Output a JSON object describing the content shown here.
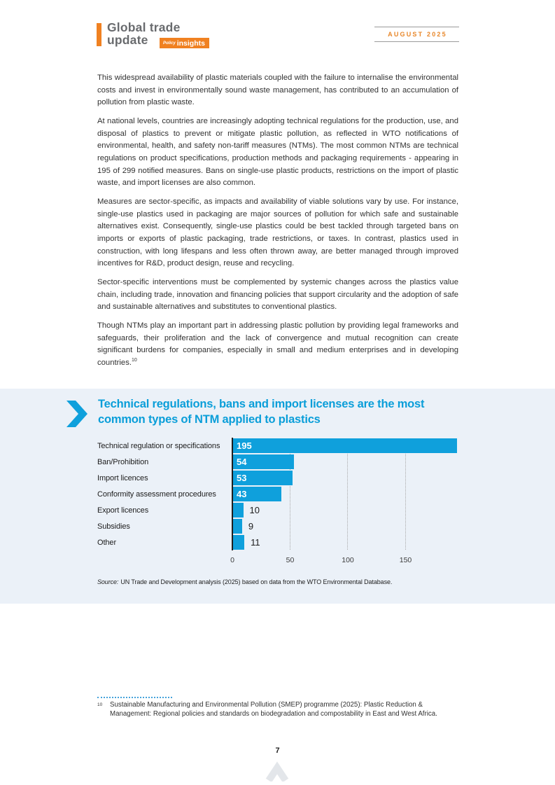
{
  "header": {
    "logo_line1": "Global trade",
    "logo_line2": "update",
    "badge_small": "Policy",
    "badge_big": "insights",
    "date": "AUGUST 2025"
  },
  "body": {
    "paragraphs": [
      "This widespread availability of plastic materials coupled with the failure to internalise the environmental costs and invest in environmentally sound waste management, has contributed to an accumulation of pollution from plastic waste.",
      "At national levels, countries are increasingly adopting technical regulations for the production, use, and disposal of plastics to prevent or mitigate plastic pollution, as reflected in WTO notifications of environmental, health, and safety non-tariff measures (NTMs). The most common NTMs are technical regulations on product specifications, production methods and packaging requirements - appearing in 195 of 299 notified measures. Bans on single-use plastic products, restrictions on the import of plastic waste, and import licenses are also common.",
      "Measures are sector-specific, as impacts and availability of viable solutions vary by use. For instance, single-use plastics used in packaging are major sources of pollution for which safe and sustainable alternatives exist. Consequently, single-use plastics could be best tackled through targeted bans on imports or exports of plastic packaging, trade restrictions, or taxes. In contrast, plastics used in construction, with long lifespans and less often thrown away, are better managed through improved incentives for R&D, product design, reuse and recycling.",
      "Sector-specific interventions must be complemented by systemic changes across the plastics value chain, including trade, innovation and financing policies that support circularity and the adoption of safe and sustainable alternatives and substitutes to conventional plastics.",
      "Though NTMs play an important part in addressing plastic pollution by providing legal frameworks and safeguards, their proliferation and the lack of convergence and mutual recognition can create significant burdens for companies, especially in small and medium enterprises and in developing countries."
    ],
    "footnote_ref": "10"
  },
  "chart_section": {
    "title_line1": "Technical regulations, bans and import licenses are the most",
    "title_line2": "common types of NTM applied to plastics",
    "source_label": "Source:",
    "source_text": "UN Trade and Development analysis (2025) based on data from the WTO Environmental Database."
  },
  "chart_data": {
    "type": "bar",
    "orientation": "horizontal",
    "title": "Technical regulations, bans and import licenses are the most common types of NTM applied to plastics",
    "categories": [
      "Technical regulation or specifications",
      "Ban/Prohibition",
      "Import licences",
      "Conformity assessment procedures",
      "Export licences",
      "Subsidies",
      "Other"
    ],
    "values": [
      195,
      54,
      53,
      43,
      10,
      9,
      11
    ],
    "xlabel": "",
    "ylabel": "",
    "xlim": [
      0,
      200
    ],
    "xticks": [
      0,
      50,
      100,
      150
    ],
    "grid": "dotted-vertical",
    "bar_color": "#0fa0dc",
    "value_label_inside_color": "#ffffff",
    "value_label_outside_color": "#1c1c1c",
    "source": "Source: UN Trade and Development analysis (2025) based on data from the WTO Environmental Database."
  },
  "footnote": {
    "marker": "10",
    "text": "Sustainable Manufacturing and Environmental Pollution (SMEP) programme (2025): Plastic Reduction & Management: Regional policies and standards on biodegradation and compostability in East and West Africa."
  },
  "footer": {
    "page_number": "7"
  },
  "colors": {
    "accent_blue": "#0a9ed9",
    "accent_orange": "#f08121",
    "panel_background": "#ebf1f8",
    "logo_gray": "#696b6e"
  }
}
